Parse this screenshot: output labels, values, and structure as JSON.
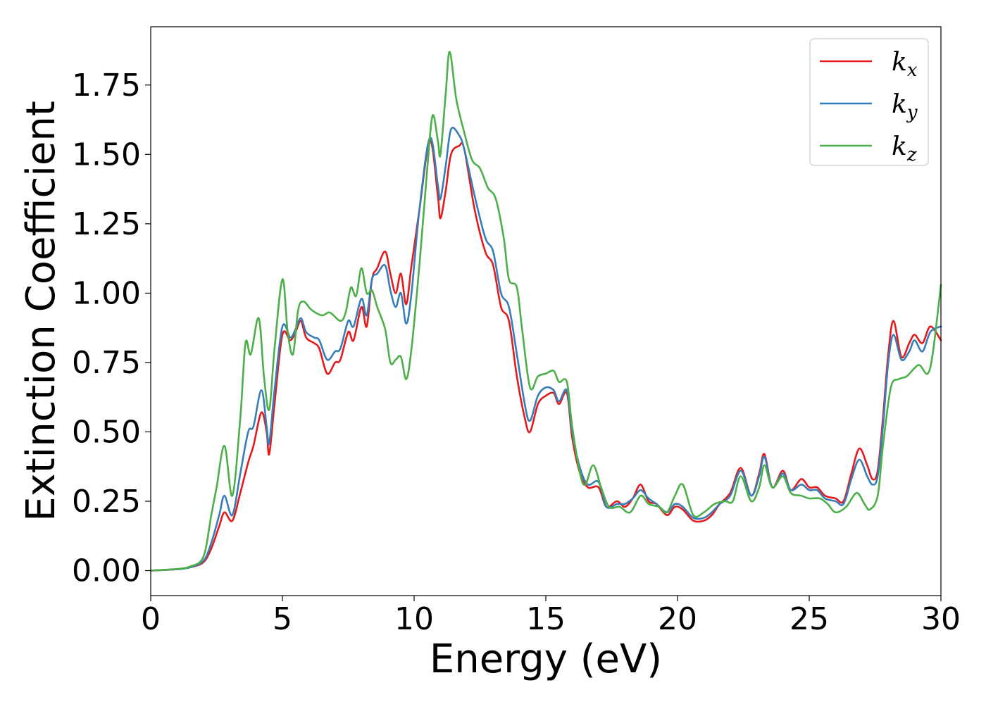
{
  "chart_data": {
    "type": "line",
    "xlabel": "Energy (eV)",
    "ylabel": "Extinction Coefficient",
    "xlim": [
      0,
      30
    ],
    "ylim": [
      -0.09,
      1.96
    ],
    "xticks": [
      0,
      5,
      10,
      15,
      20,
      25,
      30
    ],
    "yticks": [
      0.0,
      0.25,
      0.5,
      0.75,
      1.0,
      1.25,
      1.5,
      1.75
    ],
    "xtick_labels": [
      "0",
      "5",
      "10",
      "15",
      "20",
      "25",
      "30"
    ],
    "ytick_labels": [
      "0.00",
      "0.25",
      "0.50",
      "0.75",
      "1.00",
      "1.25",
      "1.50",
      "1.75"
    ],
    "grid": false,
    "legend_position": "top-right",
    "series": [
      {
        "name": "kx",
        "legend_main": "k",
        "legend_sub": "x",
        "color": "#e41a1c",
        "points": [
          [
            0,
            0
          ],
          [
            1,
            0.005
          ],
          [
            1.5,
            0.012
          ],
          [
            2,
            0.03
          ],
          [
            2.3,
            0.08
          ],
          [
            2.6,
            0.16
          ],
          [
            2.8,
            0.21
          ],
          [
            3.1,
            0.18
          ],
          [
            3.4,
            0.28
          ],
          [
            3.7,
            0.39
          ],
          [
            3.9,
            0.45
          ],
          [
            4.2,
            0.57
          ],
          [
            4.4,
            0.5
          ],
          [
            4.5,
            0.42
          ],
          [
            4.7,
            0.6
          ],
          [
            5.0,
            0.85
          ],
          [
            5.3,
            0.83
          ],
          [
            5.5,
            0.86
          ],
          [
            5.7,
            0.9
          ],
          [
            5.9,
            0.84
          ],
          [
            6.2,
            0.82
          ],
          [
            6.4,
            0.8
          ],
          [
            6.7,
            0.71
          ],
          [
            7.0,
            0.75
          ],
          [
            7.2,
            0.76
          ],
          [
            7.5,
            0.86
          ],
          [
            7.7,
            0.83
          ],
          [
            8.0,
            0.95
          ],
          [
            8.2,
            0.88
          ],
          [
            8.4,
            1.05
          ],
          [
            8.6,
            1.09
          ],
          [
            8.9,
            1.15
          ],
          [
            9.1,
            1.07
          ],
          [
            9.3,
            1.0
          ],
          [
            9.5,
            1.07
          ],
          [
            9.7,
            0.96
          ],
          [
            9.9,
            1.1
          ],
          [
            10.2,
            1.3
          ],
          [
            10.6,
            1.55
          ],
          [
            10.9,
            1.35
          ],
          [
            11.0,
            1.27
          ],
          [
            11.2,
            1.37
          ],
          [
            11.4,
            1.5
          ],
          [
            11.7,
            1.53
          ],
          [
            11.9,
            1.52
          ],
          [
            12.3,
            1.3
          ],
          [
            12.7,
            1.15
          ],
          [
            13.0,
            1.1
          ],
          [
            13.3,
            0.95
          ],
          [
            13.6,
            0.9
          ],
          [
            13.9,
            0.7
          ],
          [
            14.2,
            0.55
          ],
          [
            14.4,
            0.5
          ],
          [
            14.7,
            0.6
          ],
          [
            15.0,
            0.63
          ],
          [
            15.3,
            0.64
          ],
          [
            15.5,
            0.6
          ],
          [
            15.8,
            0.64
          ],
          [
            16.0,
            0.48
          ],
          [
            16.3,
            0.35
          ],
          [
            16.6,
            0.3
          ],
          [
            17.0,
            0.3
          ],
          [
            17.3,
            0.23
          ],
          [
            17.7,
            0.25
          ],
          [
            18.0,
            0.23
          ],
          [
            18.3,
            0.26
          ],
          [
            18.6,
            0.31
          ],
          [
            18.9,
            0.25
          ],
          [
            19.2,
            0.24
          ],
          [
            19.6,
            0.2
          ],
          [
            19.9,
            0.23
          ],
          [
            20.2,
            0.22
          ],
          [
            20.6,
            0.18
          ],
          [
            21.0,
            0.18
          ],
          [
            21.3,
            0.2
          ],
          [
            21.6,
            0.24
          ],
          [
            22.0,
            0.28
          ],
          [
            22.4,
            0.37
          ],
          [
            22.8,
            0.27
          ],
          [
            23.1,
            0.35
          ],
          [
            23.3,
            0.42
          ],
          [
            23.6,
            0.3
          ],
          [
            24.0,
            0.36
          ],
          [
            24.3,
            0.29
          ],
          [
            24.7,
            0.33
          ],
          [
            25.0,
            0.3
          ],
          [
            25.3,
            0.3
          ],
          [
            25.6,
            0.27
          ],
          [
            26.0,
            0.26
          ],
          [
            26.3,
            0.25
          ],
          [
            26.6,
            0.35
          ],
          [
            26.9,
            0.44
          ],
          [
            27.2,
            0.38
          ],
          [
            27.4,
            0.33
          ],
          [
            27.6,
            0.36
          ],
          [
            27.8,
            0.55
          ],
          [
            28.0,
            0.78
          ],
          [
            28.2,
            0.9
          ],
          [
            28.5,
            0.77
          ],
          [
            28.8,
            0.82
          ],
          [
            29.0,
            0.85
          ],
          [
            29.3,
            0.82
          ],
          [
            29.6,
            0.88
          ],
          [
            30,
            0.83
          ]
        ]
      },
      {
        "name": "ky",
        "legend_main": "k",
        "legend_sub": "y",
        "color": "#377eb8",
        "points": [
          [
            0,
            0
          ],
          [
            1,
            0.005
          ],
          [
            1.5,
            0.012
          ],
          [
            2,
            0.035
          ],
          [
            2.3,
            0.1
          ],
          [
            2.6,
            0.2
          ],
          [
            2.8,
            0.27
          ],
          [
            3.1,
            0.2
          ],
          [
            3.4,
            0.35
          ],
          [
            3.7,
            0.5
          ],
          [
            3.9,
            0.52
          ],
          [
            4.2,
            0.65
          ],
          [
            4.4,
            0.52
          ],
          [
            4.5,
            0.46
          ],
          [
            4.7,
            0.65
          ],
          [
            5.0,
            0.88
          ],
          [
            5.3,
            0.84
          ],
          [
            5.5,
            0.87
          ],
          [
            5.7,
            0.91
          ],
          [
            5.9,
            0.86
          ],
          [
            6.2,
            0.84
          ],
          [
            6.4,
            0.83
          ],
          [
            6.7,
            0.76
          ],
          [
            7.0,
            0.79
          ],
          [
            7.2,
            0.8
          ],
          [
            7.5,
            0.9
          ],
          [
            7.7,
            0.88
          ],
          [
            8.0,
            0.98
          ],
          [
            8.2,
            0.92
          ],
          [
            8.4,
            1.05
          ],
          [
            8.6,
            1.07
          ],
          [
            8.9,
            1.1
          ],
          [
            9.1,
            1.01
          ],
          [
            9.3,
            0.95
          ],
          [
            9.5,
            1.0
          ],
          [
            9.7,
            0.89
          ],
          [
            9.9,
            1.0
          ],
          [
            10.2,
            1.3
          ],
          [
            10.6,
            1.56
          ],
          [
            10.9,
            1.39
          ],
          [
            11.0,
            1.34
          ],
          [
            11.2,
            1.46
          ],
          [
            11.4,
            1.59
          ],
          [
            11.7,
            1.57
          ],
          [
            11.9,
            1.52
          ],
          [
            12.3,
            1.35
          ],
          [
            12.7,
            1.2
          ],
          [
            13.0,
            1.15
          ],
          [
            13.3,
            1.0
          ],
          [
            13.6,
            0.95
          ],
          [
            13.9,
            0.78
          ],
          [
            14.2,
            0.6
          ],
          [
            14.4,
            0.54
          ],
          [
            14.7,
            0.63
          ],
          [
            15.0,
            0.66
          ],
          [
            15.3,
            0.65
          ],
          [
            15.5,
            0.61
          ],
          [
            15.8,
            0.65
          ],
          [
            16.0,
            0.5
          ],
          [
            16.3,
            0.37
          ],
          [
            16.6,
            0.31
          ],
          [
            17.0,
            0.32
          ],
          [
            17.3,
            0.23
          ],
          [
            17.7,
            0.24
          ],
          [
            18.0,
            0.24
          ],
          [
            18.3,
            0.26
          ],
          [
            18.6,
            0.29
          ],
          [
            18.9,
            0.26
          ],
          [
            19.2,
            0.24
          ],
          [
            19.6,
            0.21
          ],
          [
            19.9,
            0.24
          ],
          [
            20.2,
            0.23
          ],
          [
            20.6,
            0.19
          ],
          [
            21.0,
            0.19
          ],
          [
            21.3,
            0.21
          ],
          [
            21.6,
            0.24
          ],
          [
            22.0,
            0.27
          ],
          [
            22.4,
            0.36
          ],
          [
            22.8,
            0.27
          ],
          [
            23.1,
            0.34
          ],
          [
            23.3,
            0.41
          ],
          [
            23.6,
            0.3
          ],
          [
            24.0,
            0.35
          ],
          [
            24.3,
            0.29
          ],
          [
            24.7,
            0.31
          ],
          [
            25.0,
            0.29
          ],
          [
            25.3,
            0.29
          ],
          [
            25.6,
            0.26
          ],
          [
            26.0,
            0.25
          ],
          [
            26.3,
            0.24
          ],
          [
            26.6,
            0.33
          ],
          [
            26.9,
            0.4
          ],
          [
            27.2,
            0.34
          ],
          [
            27.4,
            0.31
          ],
          [
            27.6,
            0.34
          ],
          [
            27.8,
            0.52
          ],
          [
            28.0,
            0.75
          ],
          [
            28.2,
            0.85
          ],
          [
            28.5,
            0.76
          ],
          [
            28.8,
            0.79
          ],
          [
            29.0,
            0.83
          ],
          [
            29.3,
            0.79
          ],
          [
            29.6,
            0.86
          ],
          [
            30,
            0.88
          ]
        ]
      },
      {
        "name": "kz",
        "legend_main": "k",
        "legend_sub": "z",
        "color": "#4daf4a",
        "points": [
          [
            0,
            0
          ],
          [
            1,
            0.006
          ],
          [
            1.5,
            0.015
          ],
          [
            2,
            0.05
          ],
          [
            2.3,
            0.2
          ],
          [
            2.5,
            0.3
          ],
          [
            2.8,
            0.45
          ],
          [
            3.1,
            0.27
          ],
          [
            3.4,
            0.55
          ],
          [
            3.6,
            0.82
          ],
          [
            3.8,
            0.78
          ],
          [
            4.1,
            0.91
          ],
          [
            4.3,
            0.7
          ],
          [
            4.5,
            0.58
          ],
          [
            4.7,
            0.8
          ],
          [
            5.0,
            1.05
          ],
          [
            5.2,
            0.86
          ],
          [
            5.4,
            0.78
          ],
          [
            5.6,
            0.94
          ],
          [
            5.8,
            0.97
          ],
          [
            6.1,
            0.94
          ],
          [
            6.5,
            0.92
          ],
          [
            6.8,
            0.93
          ],
          [
            7.2,
            0.9
          ],
          [
            7.4,
            0.93
          ],
          [
            7.6,
            1.02
          ],
          [
            7.8,
            0.99
          ],
          [
            8.0,
            1.09
          ],
          [
            8.2,
            1.0
          ],
          [
            8.4,
            1.01
          ],
          [
            8.6,
            0.95
          ],
          [
            8.9,
            0.87
          ],
          [
            9.1,
            0.75
          ],
          [
            9.3,
            0.76
          ],
          [
            9.5,
            0.77
          ],
          [
            9.7,
            0.69
          ],
          [
            9.9,
            0.8
          ],
          [
            10.2,
            1.1
          ],
          [
            10.5,
            1.45
          ],
          [
            10.7,
            1.64
          ],
          [
            10.9,
            1.55
          ],
          [
            11.0,
            1.5
          ],
          [
            11.2,
            1.72
          ],
          [
            11.35,
            1.87
          ],
          [
            11.6,
            1.7
          ],
          [
            11.9,
            1.58
          ],
          [
            12.2,
            1.48
          ],
          [
            12.5,
            1.45
          ],
          [
            12.8,
            1.38
          ],
          [
            13.1,
            1.34
          ],
          [
            13.4,
            1.2
          ],
          [
            13.6,
            1.05
          ],
          [
            13.9,
            1.02
          ],
          [
            14.1,
            0.87
          ],
          [
            14.4,
            0.66
          ],
          [
            14.7,
            0.7
          ],
          [
            15.0,
            0.71
          ],
          [
            15.3,
            0.72
          ],
          [
            15.5,
            0.68
          ],
          [
            15.8,
            0.68
          ],
          [
            16.0,
            0.52
          ],
          [
            16.3,
            0.35
          ],
          [
            16.5,
            0.31
          ],
          [
            16.8,
            0.38
          ],
          [
            17.1,
            0.3
          ],
          [
            17.4,
            0.23
          ],
          [
            17.8,
            0.23
          ],
          [
            18.2,
            0.21
          ],
          [
            18.6,
            0.27
          ],
          [
            18.9,
            0.24
          ],
          [
            19.3,
            0.23
          ],
          [
            19.6,
            0.21
          ],
          [
            19.9,
            0.27
          ],
          [
            20.2,
            0.31
          ],
          [
            20.6,
            0.2
          ],
          [
            21.0,
            0.21
          ],
          [
            21.4,
            0.24
          ],
          [
            21.8,
            0.25
          ],
          [
            22.1,
            0.25
          ],
          [
            22.4,
            0.34
          ],
          [
            22.8,
            0.25
          ],
          [
            23.1,
            0.3
          ],
          [
            23.3,
            0.38
          ],
          [
            23.6,
            0.3
          ],
          [
            24.0,
            0.34
          ],
          [
            24.3,
            0.28
          ],
          [
            24.7,
            0.27
          ],
          [
            25.0,
            0.26
          ],
          [
            25.4,
            0.26
          ],
          [
            25.7,
            0.24
          ],
          [
            26.0,
            0.21
          ],
          [
            26.4,
            0.23
          ],
          [
            26.8,
            0.28
          ],
          [
            27.1,
            0.24
          ],
          [
            27.3,
            0.22
          ],
          [
            27.6,
            0.27
          ],
          [
            27.8,
            0.45
          ],
          [
            28.1,
            0.66
          ],
          [
            28.4,
            0.69
          ],
          [
            28.7,
            0.7
          ],
          [
            29.0,
            0.73
          ],
          [
            29.2,
            0.74
          ],
          [
            29.5,
            0.71
          ],
          [
            29.7,
            0.79
          ],
          [
            30,
            1.03
          ]
        ]
      }
    ]
  }
}
